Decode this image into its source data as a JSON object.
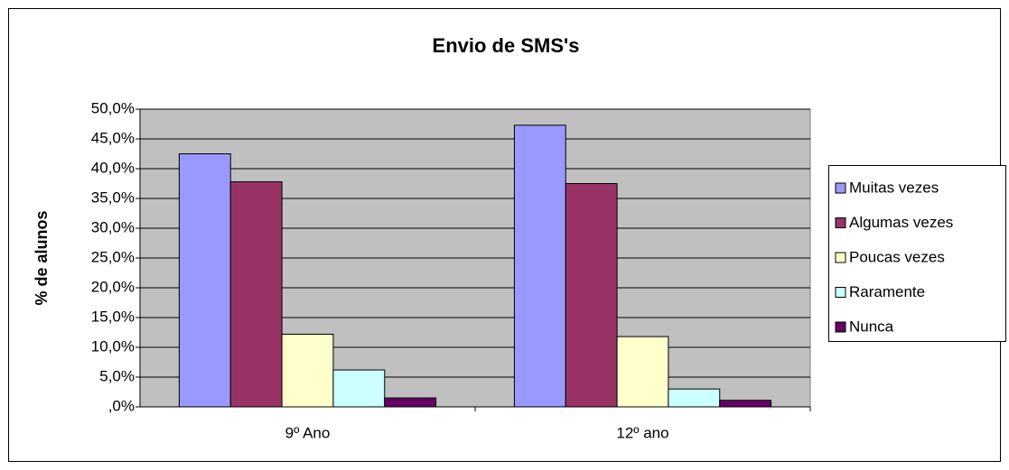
{
  "chart_data": {
    "type": "bar",
    "title": "Envio de SMS's",
    "y_label": "% de alunos",
    "categories": [
      "9º Ano",
      "12º ano"
    ],
    "series": [
      {
        "name": "Muitas vezes",
        "color": "#9999ff",
        "values": [
          42.5,
          47.3
        ]
      },
      {
        "name": "Algumas vezes",
        "color": "#993366",
        "values": [
          37.8,
          37.5
        ]
      },
      {
        "name": "Poucas vezes",
        "color": "#ffffcc",
        "values": [
          12.2,
          11.8
        ]
      },
      {
        "name": "Raramente",
        "color": "#ccffff",
        "values": [
          6.2,
          3.0
        ]
      },
      {
        "name": "Nunca",
        "color": "#660066",
        "values": [
          1.5,
          1.1
        ]
      }
    ],
    "ylim": [
      0,
      50
    ],
    "yticks": [
      {
        "value": 0,
        "label": ",0%"
      },
      {
        "value": 5,
        "label": "5,0%"
      },
      {
        "value": 10,
        "label": "10,0%"
      },
      {
        "value": 15,
        "label": "15,0%"
      },
      {
        "value": 20,
        "label": "20,0%"
      },
      {
        "value": 25,
        "label": "25,0%"
      },
      {
        "value": 30,
        "label": "30,0%"
      },
      {
        "value": 35,
        "label": "35,0%"
      },
      {
        "value": 40,
        "label": "40,0%"
      },
      {
        "value": 45,
        "label": "45,0%"
      },
      {
        "value": 50,
        "label": "50,0%"
      }
    ],
    "grid": true,
    "legend": "right",
    "plot_background": "#c0c0c0"
  }
}
